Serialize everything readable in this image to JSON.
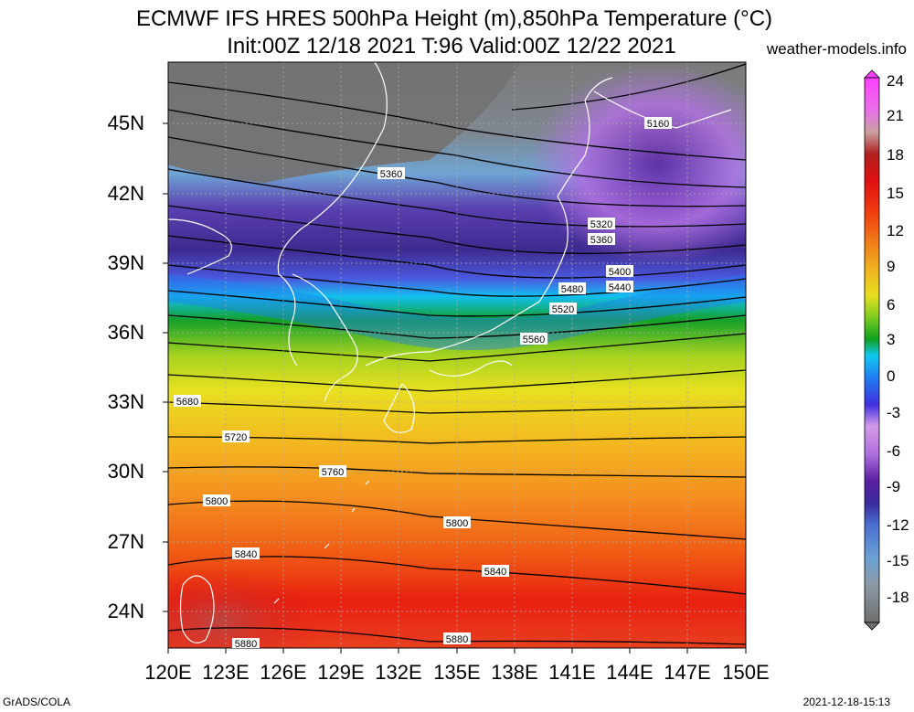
{
  "title_line1": "ECMWF IFS HRES 500hPa Height (m),850hPa Temperature (°C)",
  "title_line2": "Init:00Z 12/18 2021 T:96 Valid:00Z 12/22 2021",
  "credit": "weather-models.info",
  "footer_left": "GrADS/COLA",
  "footer_right": "2021-12-18-15:13",
  "lat_labels": [
    "45N",
    "42N",
    "39N",
    "36N",
    "33N",
    "30N",
    "27N",
    "24N"
  ],
  "lon_labels": [
    "120E",
    "123E",
    "126E",
    "129E",
    "132E",
    "135E",
    "138E",
    "141E",
    "144E",
    "147E",
    "150E"
  ],
  "colorbar": {
    "labels": [
      "24",
      "21",
      "18",
      "15",
      "12",
      "9",
      "6",
      "3",
      "0",
      "-3",
      "-6",
      "-9",
      "-12",
      "-15",
      "-18"
    ],
    "range": [
      -21,
      27
    ],
    "colors": [
      "#6e6e6e",
      "#8c9aa6",
      "#6aa0d6",
      "#4a6ed0",
      "#3a2a9a",
      "#5a1fa0",
      "#8f3fd0",
      "#b070e0",
      "#d49ae8",
      "#4030e0",
      "#1f7ff0",
      "#10c8f0",
      "#10a020",
      "#7ccc20",
      "#e8e020",
      "#f0b020",
      "#f07a18",
      "#f04010",
      "#e01010",
      "#b02020",
      "#c8a0a0",
      "#e870e8",
      "#ff40ff"
    ]
  },
  "contour_labels": [
    "5160",
    "5320",
    "5360",
    "5360",
    "5400",
    "5440",
    "5480",
    "5520",
    "5560",
    "5680",
    "5720",
    "5760",
    "5800",
    "5800",
    "5840",
    "5840",
    "5880",
    "5880"
  ]
}
